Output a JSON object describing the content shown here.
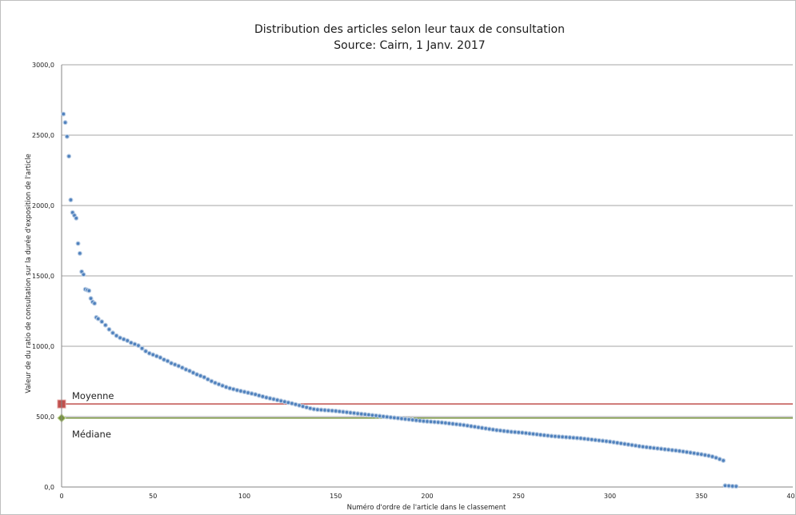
{
  "chart_data": {
    "type": "scatter",
    "title": "Distribution des articles selon leur taux de consultation",
    "subtitle": "Source: Cairn, 1 Janv. 2017",
    "xlabel": "Numéro d'ordre de l'article dans le classement",
    "ylabel": "Valeur de du ratio de consultation sur la durée d'exposition de l'article",
    "xlim": [
      0,
      400
    ],
    "ylim": [
      0,
      3000
    ],
    "x_ticks": [
      0,
      50,
      100,
      150,
      200,
      250,
      300,
      350,
      400
    ],
    "y_ticks": [
      0,
      500,
      1000,
      1500,
      2000,
      2500,
      3000
    ],
    "x_tick_labels": [
      "0",
      "50",
      "100",
      "150",
      "200",
      "250",
      "300",
      "350",
      "400"
    ],
    "y_tick_labels": [
      "0,0",
      "500,0",
      "1000,0",
      "1500,0",
      "2000,0",
      "2500,0",
      "3000,0"
    ],
    "grid": "horizontal",
    "colors": {
      "points": "#4f81bd",
      "mean": "#c0504d",
      "median": "#77933c",
      "grid": "#868686"
    },
    "reference_lines": [
      {
        "label": "Moyenne",
        "y": 590,
        "color": "#c0504d"
      },
      {
        "label": "Médiane",
        "y": 490,
        "color": "#77933c"
      }
    ],
    "series": [
      {
        "points": [
          [
            1,
            2650
          ],
          [
            2,
            2590
          ],
          [
            3,
            2490
          ],
          [
            4,
            2350
          ],
          [
            5,
            2040
          ],
          [
            6,
            1950
          ],
          [
            7,
            1930
          ],
          [
            8,
            1910
          ],
          [
            9,
            1730
          ],
          [
            10,
            1660
          ],
          [
            11,
            1530
          ],
          [
            12,
            1510
          ],
          [
            13,
            1405
          ],
          [
            14,
            1400
          ],
          [
            15,
            1395
          ],
          [
            16,
            1340
          ],
          [
            17,
            1315
          ],
          [
            18,
            1305
          ],
          [
            19,
            1205
          ],
          [
            20,
            1195
          ],
          [
            22,
            1175
          ],
          [
            24,
            1150
          ],
          [
            26,
            1120
          ],
          [
            28,
            1095
          ],
          [
            30,
            1075
          ],
          [
            32,
            1060
          ],
          [
            34,
            1050
          ],
          [
            36,
            1040
          ],
          [
            38,
            1025
          ],
          [
            40,
            1015
          ],
          [
            42,
            1005
          ],
          [
            44,
            985
          ],
          [
            46,
            965
          ],
          [
            48,
            950
          ],
          [
            50,
            940
          ],
          [
            52,
            930
          ],
          [
            54,
            920
          ],
          [
            56,
            905
          ],
          [
            58,
            895
          ],
          [
            60,
            880
          ],
          [
            62,
            870
          ],
          [
            64,
            860
          ],
          [
            66,
            848
          ],
          [
            68,
            835
          ],
          [
            70,
            825
          ],
          [
            72,
            812
          ],
          [
            74,
            800
          ],
          [
            76,
            790
          ],
          [
            78,
            780
          ],
          [
            80,
            765
          ],
          [
            82,
            752
          ],
          [
            84,
            740
          ],
          [
            86,
            730
          ],
          [
            88,
            720
          ],
          [
            90,
            710
          ],
          [
            92,
            702
          ],
          [
            94,
            695
          ],
          [
            96,
            688
          ],
          [
            98,
            682
          ],
          [
            100,
            676
          ],
          [
            102,
            670
          ],
          [
            104,
            664
          ],
          [
            106,
            658
          ],
          [
            108,
            650
          ],
          [
            110,
            643
          ],
          [
            112,
            636
          ],
          [
            114,
            630
          ],
          [
            116,
            624
          ],
          [
            118,
            618
          ],
          [
            120,
            612
          ],
          [
            122,
            606
          ],
          [
            124,
            600
          ],
          [
            126,
            594
          ],
          [
            128,
            587
          ],
          [
            130,
            580
          ],
          [
            132,
            573
          ],
          [
            134,
            566
          ],
          [
            136,
            559
          ],
          [
            138,
            553
          ],
          [
            140,
            550
          ],
          [
            142,
            548
          ],
          [
            144,
            546
          ],
          [
            146,
            544
          ],
          [
            148,
            542
          ],
          [
            150,
            540
          ],
          [
            152,
            537
          ],
          [
            154,
            534
          ],
          [
            156,
            531
          ],
          [
            158,
            528
          ],
          [
            160,
            525
          ],
          [
            162,
            522
          ],
          [
            164,
            519
          ],
          [
            166,
            516
          ],
          [
            168,
            513
          ],
          [
            170,
            510
          ],
          [
            172,
            507
          ],
          [
            174,
            504
          ],
          [
            176,
            501
          ],
          [
            178,
            498
          ],
          [
            180,
            495
          ],
          [
            182,
            492
          ],
          [
            184,
            489
          ],
          [
            186,
            486
          ],
          [
            188,
            483
          ],
          [
            190,
            480
          ],
          [
            192,
            477
          ],
          [
            194,
            474
          ],
          [
            196,
            471
          ],
          [
            198,
            468
          ],
          [
            200,
            466
          ],
          [
            202,
            464
          ],
          [
            204,
            462
          ],
          [
            206,
            460
          ],
          [
            208,
            458
          ],
          [
            210,
            455
          ],
          [
            212,
            452
          ],
          [
            214,
            449
          ],
          [
            216,
            446
          ],
          [
            218,
            443
          ],
          [
            220,
            440
          ],
          [
            222,
            436
          ],
          [
            224,
            432
          ],
          [
            226,
            428
          ],
          [
            228,
            424
          ],
          [
            230,
            420
          ],
          [
            232,
            416
          ],
          [
            234,
            412
          ],
          [
            236,
            408
          ],
          [
            238,
            404
          ],
          [
            240,
            401
          ],
          [
            242,
            398
          ],
          [
            244,
            395
          ],
          [
            246,
            392
          ],
          [
            248,
            390
          ],
          [
            250,
            388
          ],
          [
            252,
            386
          ],
          [
            254,
            383
          ],
          [
            256,
            380
          ],
          [
            258,
            377
          ],
          [
            260,
            374
          ],
          [
            262,
            371
          ],
          [
            264,
            368
          ],
          [
            266,
            365
          ],
          [
            268,
            362
          ],
          [
            270,
            360
          ],
          [
            272,
            358
          ],
          [
            274,
            356
          ],
          [
            276,
            354
          ],
          [
            278,
            352
          ],
          [
            280,
            350
          ],
          [
            282,
            348
          ],
          [
            284,
            346
          ],
          [
            286,
            343
          ],
          [
            288,
            340
          ],
          [
            290,
            337
          ],
          [
            292,
            334
          ],
          [
            294,
            331
          ],
          [
            296,
            328
          ],
          [
            298,
            325
          ],
          [
            300,
            322
          ],
          [
            302,
            318
          ],
          [
            304,
            314
          ],
          [
            306,
            310
          ],
          [
            308,
            306
          ],
          [
            310,
            302
          ],
          [
            312,
            298
          ],
          [
            314,
            294
          ],
          [
            316,
            290
          ],
          [
            318,
            286
          ],
          [
            320,
            283
          ],
          [
            322,
            280
          ],
          [
            324,
            277
          ],
          [
            326,
            274
          ],
          [
            328,
            271
          ],
          [
            330,
            268
          ],
          [
            332,
            265
          ],
          [
            334,
            262
          ],
          [
            336,
            259
          ],
          [
            338,
            256
          ],
          [
            340,
            252
          ],
          [
            342,
            248
          ],
          [
            344,
            244
          ],
          [
            346,
            240
          ],
          [
            348,
            236
          ],
          [
            350,
            232
          ],
          [
            352,
            227
          ],
          [
            354,
            222
          ],
          [
            356,
            216
          ],
          [
            358,
            208
          ],
          [
            360,
            198
          ],
          [
            362,
            188
          ],
          [
            363,
            10
          ],
          [
            365,
            8
          ],
          [
            367,
            6
          ],
          [
            369,
            5
          ]
        ]
      }
    ]
  }
}
